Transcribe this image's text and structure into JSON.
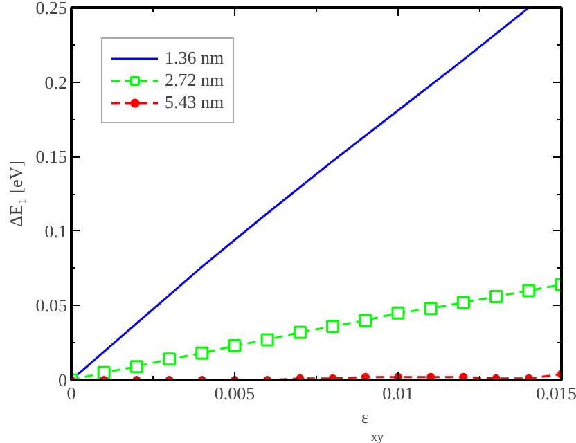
{
  "chart_data": {
    "type": "line",
    "xlabel": "ε$_{xy}$",
    "ylabel": "ΔE₁ [eV]",
    "xlim": [
      0,
      0.015
    ],
    "ylim": [
      0,
      0.25
    ],
    "xticks": [
      0,
      0.005,
      0.01,
      0.015
    ],
    "yticks": [
      0,
      0.05,
      0.1,
      0.15,
      0.2,
      0.25
    ],
    "grid": false,
    "legend": "top left",
    "series": [
      {
        "name": "1.36 nm",
        "color": "#0000ff",
        "marker": "none",
        "line_style": "solid",
        "x": [
          0,
          0.002,
          0.004,
          0.006,
          0.008,
          0.01,
          0.012,
          0.014
        ],
        "values": [
          0,
          0.038,
          0.076,
          0.112,
          0.147,
          0.181,
          0.215,
          0.25
        ]
      },
      {
        "name": "2.72 nm",
        "color": "#00ff00",
        "marker": "square",
        "line_style": "dashed",
        "x": [
          0,
          0.001,
          0.002,
          0.003,
          0.004,
          0.005,
          0.006,
          0.007,
          0.008,
          0.009,
          0.01,
          0.011,
          0.012,
          0.013,
          0.014,
          0.015
        ],
        "values": [
          0,
          0.005,
          0.009,
          0.014,
          0.018,
          0.023,
          0.027,
          0.032,
          0.036,
          0.04,
          0.045,
          0.048,
          0.052,
          0.056,
          0.06,
          0.064
        ]
      },
      {
        "name": "5.43 nm",
        "color": "#ff0000",
        "marker": "circle",
        "line_style": "dashed",
        "x": [
          0,
          0.001,
          0.002,
          0.003,
          0.004,
          0.005,
          0.006,
          0.007,
          0.008,
          0.009,
          0.01,
          0.011,
          0.012,
          0.013,
          0.014,
          0.015
        ],
        "values": [
          0,
          0,
          0,
          0,
          0,
          0,
          0,
          0.001,
          0.001,
          0.002,
          0.002,
          0.002,
          0.002,
          0.001,
          0.001,
          0.004
        ]
      }
    ]
  }
}
